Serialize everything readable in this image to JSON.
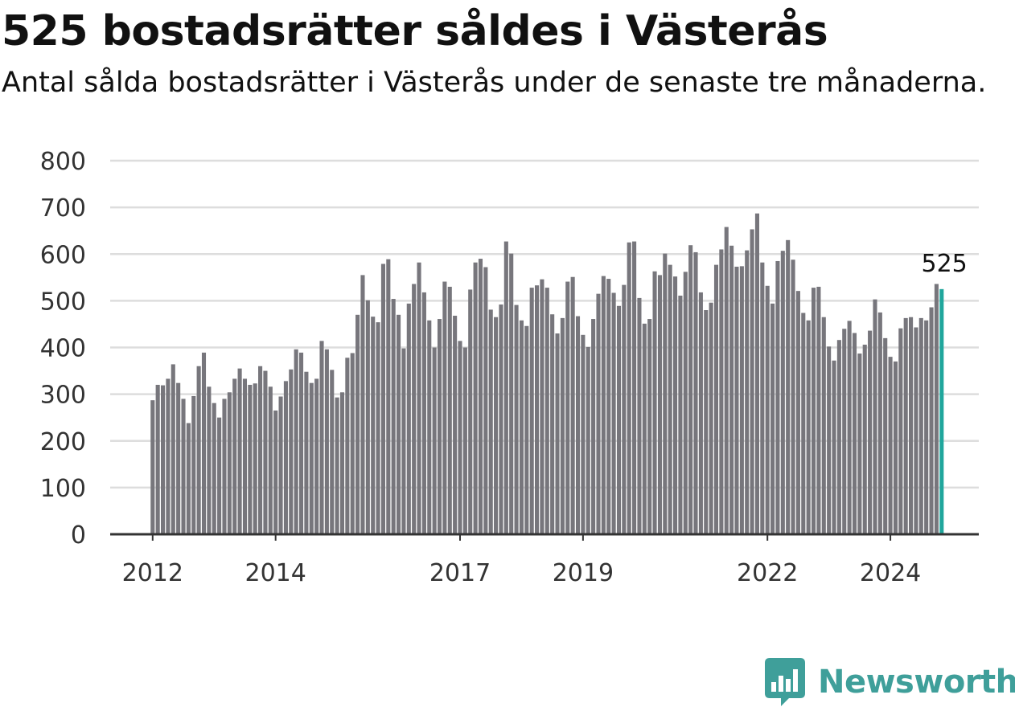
{
  "title": "525 bostadsrätter såldes i Västerås",
  "subtitle": "Antal sålda bostadsrätter i Västerås under de senaste tre månaderna.",
  "brand": {
    "name": "Newsworthy",
    "color": "#3f9f9a"
  },
  "colors": {
    "bar": "#77767c",
    "highlight": "#20a69c",
    "grid": "#dddddd",
    "axis": "#333333"
  },
  "chart_data": {
    "type": "bar",
    "title": "525 bostadsrätter såldes i Västerås",
    "subtitle": "Antal sålda bostadsrätter i Västerås under de senaste tre månaderna.",
    "xlabel": "",
    "ylabel": "",
    "ylim": [
      0,
      800
    ],
    "y_ticks": [
      0,
      100,
      200,
      300,
      400,
      500,
      600,
      700,
      800
    ],
    "x_ticks": [
      "2012",
      "2014",
      "2017",
      "2019",
      "2022",
      "2024"
    ],
    "grid": true,
    "legend": "none",
    "start": "2012-01",
    "frequency": "monthly",
    "highlight_last": true,
    "last_value_label": "525",
    "values": [
      287,
      320,
      319,
      333,
      364,
      324,
      290,
      238,
      296,
      360,
      389,
      316,
      281,
      250,
      290,
      304,
      333,
      355,
      333,
      320,
      323,
      360,
      350,
      316,
      265,
      295,
      328,
      353,
      396,
      389,
      348,
      324,
      333,
      414,
      396,
      352,
      293,
      304,
      378,
      388,
      470,
      555,
      501,
      466,
      454,
      579,
      589,
      504,
      470,
      398,
      494,
      536,
      582,
      518,
      458,
      400,
      461,
      541,
      530,
      468,
      414,
      400,
      524,
      582,
      590,
      572,
      481,
      465,
      492,
      627,
      601,
      491,
      458,
      446,
      528,
      533,
      546,
      528,
      471,
      430,
      463,
      541,
      551,
      467,
      427,
      401,
      461,
      515,
      553,
      547,
      517,
      489,
      534,
      625,
      627,
      506,
      451,
      461,
      563,
      555,
      601,
      577,
      552,
      511,
      562,
      619,
      604,
      518,
      480,
      496,
      577,
      610,
      658,
      618,
      573,
      574,
      608,
      653,
      687,
      582,
      532,
      494,
      585,
      607,
      630,
      588,
      521,
      474,
      458,
      528,
      530,
      465,
      402,
      372,
      416,
      440,
      457,
      431,
      387,
      406,
      436,
      503,
      475,
      420,
      380,
      370,
      441,
      463,
      465,
      443,
      463,
      458,
      486,
      536,
      525
    ]
  }
}
